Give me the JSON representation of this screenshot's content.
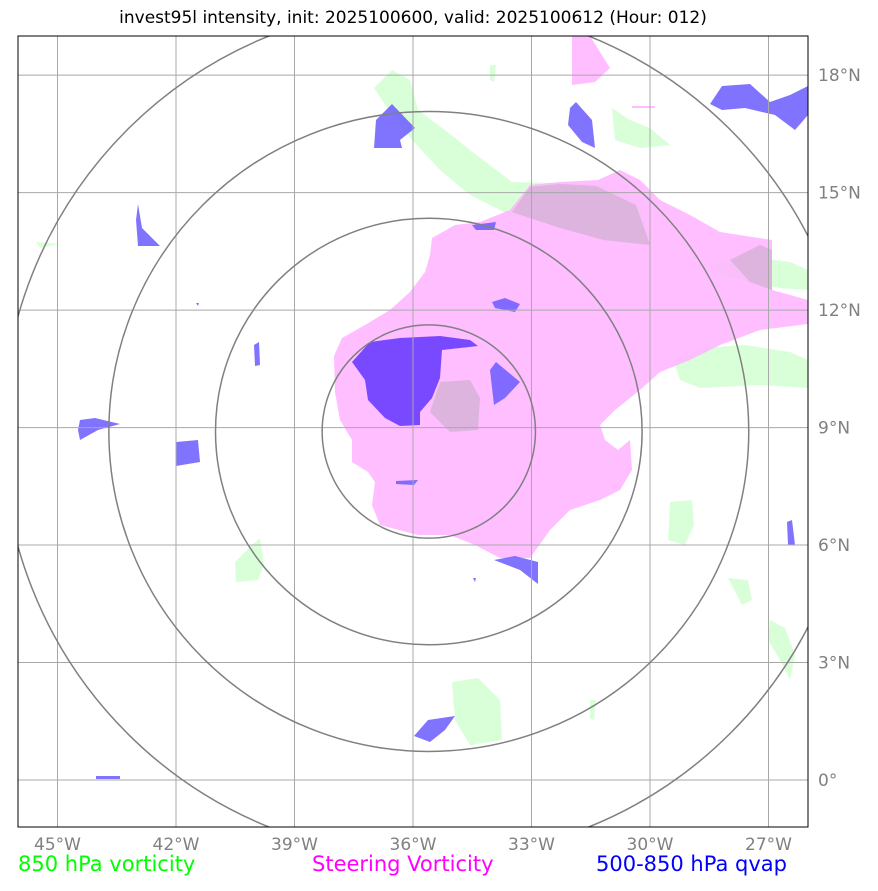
{
  "title": "invest95l intensity, init: 2025100600, valid: 2025100612 (Hour: 012)",
  "map": {
    "lon_range": [
      -46,
      -26
    ],
    "lat_range": [
      -1.2,
      19
    ],
    "center": {
      "lon": -35.6,
      "lat": 8.9
    },
    "range_rings_deg": [
      2.7,
      5.4,
      8.1,
      10.8
    ],
    "grid": true,
    "lon_ticks": [
      {
        "value": -45,
        "label": "45°W"
      },
      {
        "value": -42,
        "label": "42°W"
      },
      {
        "value": -39,
        "label": "39°W"
      },
      {
        "value": -36,
        "label": "36°W"
      },
      {
        "value": -33,
        "label": "33°W"
      },
      {
        "value": -30,
        "label": "30°W"
      },
      {
        "value": -27,
        "label": "27°W"
      }
    ],
    "lat_ticks": [
      {
        "value": 0,
        "label": "0°"
      },
      {
        "value": 3,
        "label": "3°N"
      },
      {
        "value": 6,
        "label": "6°N"
      },
      {
        "value": 9,
        "label": "9°N"
      },
      {
        "value": 12,
        "label": "12°N"
      },
      {
        "value": 15,
        "label": "15°N"
      },
      {
        "value": 18,
        "label": "18°N"
      }
    ]
  },
  "colors": {
    "vort850": "#ccffcc",
    "steering": "#ffb3ff",
    "qvap": "#6a5cff",
    "qvap_dense": "#6a3cff",
    "overlap": "#d9b3d9",
    "grid": "#a8a8a8",
    "ring": "#808080",
    "legend_green": "#00ff00",
    "legend_magenta": "#ff00ff",
    "legend_blue": "#0000ff"
  },
  "legend": {
    "vort850": "850 hPa vorticity",
    "steering": "Steering Vorticity",
    "qvap": "500-850 hPa qvap"
  }
}
